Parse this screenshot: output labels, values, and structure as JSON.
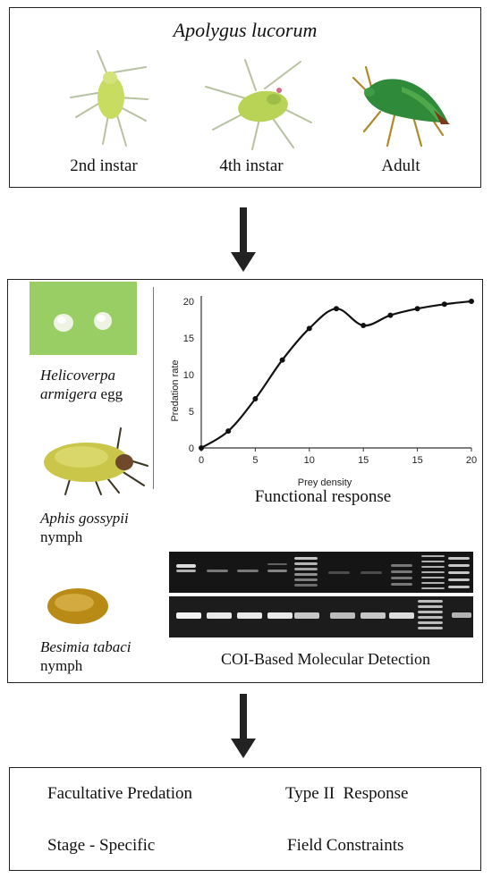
{
  "top_panel": {
    "title": "Apolygus lucorum",
    "stages": [
      {
        "label": "2nd instar",
        "icon": "green-nymph-icon"
      },
      {
        "label": "4th instar",
        "icon": "green-nymph-icon"
      },
      {
        "label": "Adult",
        "icon": "green-adult-bug-icon"
      }
    ]
  },
  "middle_panel": {
    "prey": [
      {
        "name_italic_1": "Helicoverpa",
        "name_italic_2": "armigera",
        "suffix": " egg"
      },
      {
        "name_italic": "Aphis gossypii",
        "suffix": "nymph"
      },
      {
        "name_italic": "Besimia tabaci",
        "suffix": "nymph"
      }
    ],
    "chart_caption": "Functional response",
    "gel_caption": "COI-Based Molecular Detection"
  },
  "chart_data": {
    "type": "line",
    "xlabel": "Prey density",
    "ylabel": "Predation rate",
    "x_tick_labels": [
      "0",
      "5",
      "10",
      "15",
      "20"
    ],
    "x_ticks_second_row": [
      "10",
      "15",
      "20"
    ],
    "y_tick_labels": [
      "0",
      "5",
      "10",
      "15",
      "20"
    ],
    "ylim": [
      0,
      20
    ],
    "points": [
      {
        "x": 0,
        "y": 0
      },
      {
        "x": 2.5,
        "y": 2.3
      },
      {
        "x": 5,
        "y": 6.7
      },
      {
        "x": 7.5,
        "y": 12.0
      },
      {
        "x": 10,
        "y": 16.3
      },
      {
        "x": 12.5,
        "y": 19.0
      },
      {
        "x": 15,
        "y": 16.7
      },
      {
        "x": 17.5,
        "y": 18.1
      },
      {
        "x": 20,
        "y": 19.0
      },
      {
        "x": 22.5,
        "y": 19.6
      },
      {
        "x": 25,
        "y": 20.0
      }
    ]
  },
  "bottom_panel": {
    "items": [
      "Facultative Predation",
      "Type II  Response",
      "Stage - Specific",
      "Field Constraints"
    ]
  },
  "colors": {
    "insect_green": "#b8d45a",
    "adult_green": "#2f8a3a",
    "leaf_green": "#8fc85c",
    "aphid_yellow": "#c8c84a",
    "whitefly_gold": "#c69a1e",
    "gel_bg": "#1a1a1a"
  }
}
